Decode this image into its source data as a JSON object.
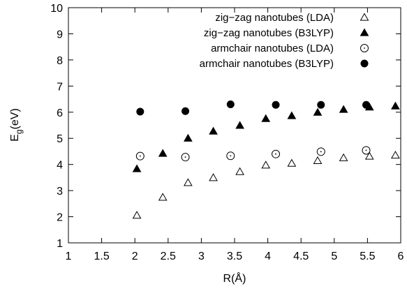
{
  "chart_data": {
    "type": "scatter",
    "title": "",
    "xlabel": "R(Å)",
    "ylabel": {
      "main": "E",
      "sub": "g",
      "rest": "(eV)"
    },
    "xlim": [
      1,
      6
    ],
    "ylim": [
      1,
      10
    ],
    "x_ticks": [
      "1",
      "1.5",
      "2",
      "2.5",
      "3",
      "3.5",
      "4",
      "4.5",
      "5",
      "5.5",
      "6"
    ],
    "y_ticks": [
      "1",
      "2",
      "3",
      "4",
      "5",
      "6",
      "7",
      "8",
      "9",
      "10"
    ],
    "grid": false,
    "legend_position": "top-right",
    "series": [
      {
        "name": "zig−zag nanotubes (LDA)",
        "marker": "triangle-open",
        "points": [
          {
            "x": 2.03,
            "y": 2.05
          },
          {
            "x": 2.42,
            "y": 2.74
          },
          {
            "x": 2.8,
            "y": 3.3
          },
          {
            "x": 3.18,
            "y": 3.49
          },
          {
            "x": 3.58,
            "y": 3.72
          },
          {
            "x": 3.97,
            "y": 3.97
          },
          {
            "x": 4.36,
            "y": 4.04
          },
          {
            "x": 4.75,
            "y": 4.14
          },
          {
            "x": 5.14,
            "y": 4.25
          },
          {
            "x": 5.53,
            "y": 4.31
          },
          {
            "x": 5.92,
            "y": 4.35
          }
        ]
      },
      {
        "name": "zig−zag nanotubes (B3LYP)",
        "marker": "triangle-filled",
        "points": [
          {
            "x": 2.03,
            "y": 3.83
          },
          {
            "x": 2.42,
            "y": 4.42
          },
          {
            "x": 2.8,
            "y": 5.0
          },
          {
            "x": 3.18,
            "y": 5.27
          },
          {
            "x": 3.58,
            "y": 5.49
          },
          {
            "x": 3.97,
            "y": 5.75
          },
          {
            "x": 4.36,
            "y": 5.86
          },
          {
            "x": 4.75,
            "y": 5.99
          },
          {
            "x": 5.14,
            "y": 6.1
          },
          {
            "x": 5.53,
            "y": 6.19
          },
          {
            "x": 5.92,
            "y": 6.23
          }
        ]
      },
      {
        "name": "armchair nanotubes (LDA)",
        "marker": "circle-open",
        "points": [
          {
            "x": 2.08,
            "y": 4.32
          },
          {
            "x": 2.76,
            "y": 4.28
          },
          {
            "x": 3.44,
            "y": 4.33
          },
          {
            "x": 4.12,
            "y": 4.4
          },
          {
            "x": 4.8,
            "y": 4.49
          },
          {
            "x": 5.48,
            "y": 4.54
          }
        ]
      },
      {
        "name": "armchair nanotubes (B3LYP)",
        "marker": "circle-filled",
        "points": [
          {
            "x": 2.08,
            "y": 6.02
          },
          {
            "x": 2.76,
            "y": 6.04
          },
          {
            "x": 3.44,
            "y": 6.3
          },
          {
            "x": 4.12,
            "y": 6.28
          },
          {
            "x": 4.8,
            "y": 6.28
          },
          {
            "x": 5.48,
            "y": 6.28
          }
        ]
      }
    ]
  }
}
